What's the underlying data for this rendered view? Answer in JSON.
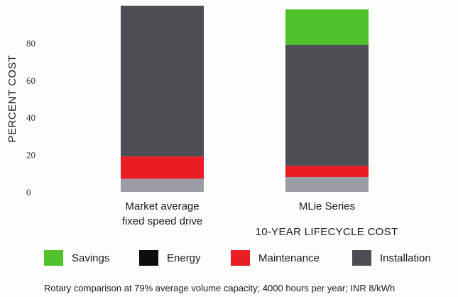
{
  "chart_data": {
    "type": "bar",
    "stacked": true,
    "categories": [
      [
        "Market average",
        "fixed speed drive"
      ],
      [
        "MLie Series"
      ]
    ],
    "series": [
      {
        "name": "Installation",
        "color": "#9a9da3",
        "values": [
          7,
          8
        ]
      },
      {
        "name": "Maintenance",
        "color": "#ea1c24",
        "values": [
          12,
          6
        ]
      },
      {
        "name": "Energy",
        "color": "#4b4e53",
        "values": [
          81,
          65
        ]
      },
      {
        "name": "Savings",
        "color": "#52c22b",
        "values": [
          0,
          19
        ]
      }
    ],
    "yticks": [
      0,
      20,
      40,
      60,
      80
    ],
    "ylim": [
      0,
      100
    ],
    "ylabel": "PERCENT COST",
    "xlabel": "10-YEAR LIFECYCLE COST",
    "grid": false
  },
  "legend": [
    {
      "label": "Savings",
      "color": "#52c22b"
    },
    {
      "label": "Energy",
      "color": "#0d0d0d"
    },
    {
      "label": "Maintenance",
      "color": "#ea1c24"
    },
    {
      "label": "Installation",
      "color": "#4b4e53"
    }
  ],
  "footnote": "Rotary comparison at 79% average volume capacity; 4000 hours per year; INR 8/kWh"
}
